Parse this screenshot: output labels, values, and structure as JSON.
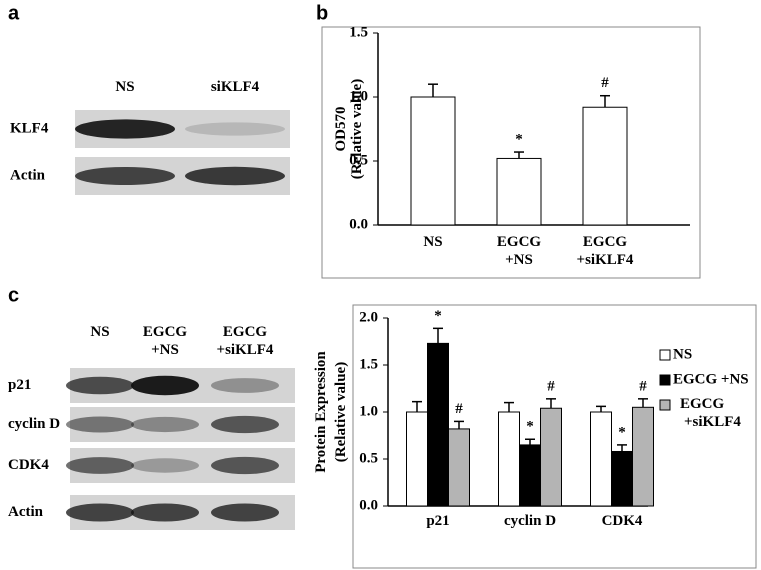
{
  "panel_labels": [
    "a",
    "b",
    "c"
  ],
  "blot_a": {
    "lanes": [
      [
        "NS"
      ],
      [
        "siKLF4"
      ]
    ],
    "rows": [
      "KLF4",
      "Actin"
    ]
  },
  "blot_c": {
    "lanes": [
      [
        "NS"
      ],
      [
        "EGCG",
        "+NS"
      ],
      [
        "EGCG",
        "+siKLF4"
      ]
    ],
    "rows": [
      "p21",
      "cyclin D",
      "CDK4",
      "Actin"
    ]
  },
  "chart_data": [
    {
      "type": "bar",
      "ylabel": [
        "OD570",
        "(Relative value)"
      ],
      "categories": [
        [
          "NS"
        ],
        [
          "EGCG",
          "+NS"
        ],
        [
          "EGCG",
          "+siKLF4"
        ]
      ],
      "values": [
        1.0,
        0.52,
        0.92
      ],
      "errors": [
        0.1,
        0.05,
        0.09
      ],
      "annotations": [
        null,
        "*",
        "#"
      ],
      "color": "#ffffff",
      "ylim": [
        0,
        1.5
      ],
      "yticks": [
        {
          "value": 0,
          "label": "0.0"
        },
        {
          "value": 0.5,
          "label": "0.5"
        },
        {
          "value": 1,
          "label": "1.0"
        },
        {
          "value": 1.5,
          "label": "1.5"
        }
      ]
    },
    {
      "type": "bar",
      "ylabel": [
        "Protein Expression",
        "(Relative value)"
      ],
      "categories": [
        [
          "p21"
        ],
        [
          "cyclin D"
        ],
        [
          "CDK4"
        ]
      ],
      "series": [
        {
          "name": "NS",
          "color": "#ffffff",
          "values": [
            1.0,
            1.0,
            1.0
          ],
          "errors": [
            0.11,
            0.1,
            0.06
          ],
          "annotations": [
            null,
            null,
            null
          ]
        },
        {
          "name": "EGCG +NS",
          "color": "#000000",
          "values": [
            1.73,
            0.65,
            0.58
          ],
          "errors": [
            0.16,
            0.06,
            0.07
          ],
          "annotations": [
            "*",
            "*",
            "*"
          ]
        },
        {
          "name": "EGCG +siKLF4",
          "color": "#b4b4b4",
          "values": [
            0.82,
            1.04,
            1.05
          ],
          "errors": [
            0.08,
            0.1,
            0.09
          ],
          "annotations": [
            "#",
            "#",
            "#"
          ]
        }
      ],
      "legend": "right",
      "ylim": [
        0,
        2
      ],
      "yticks": [
        {
          "value": 0,
          "label": "0.0"
        },
        {
          "value": 0.5,
          "label": "0.5"
        },
        {
          "value": 1,
          "label": "1.0"
        },
        {
          "value": 1.5,
          "label": "1.5"
        },
        {
          "value": 2,
          "label": "2.0"
        }
      ]
    }
  ]
}
